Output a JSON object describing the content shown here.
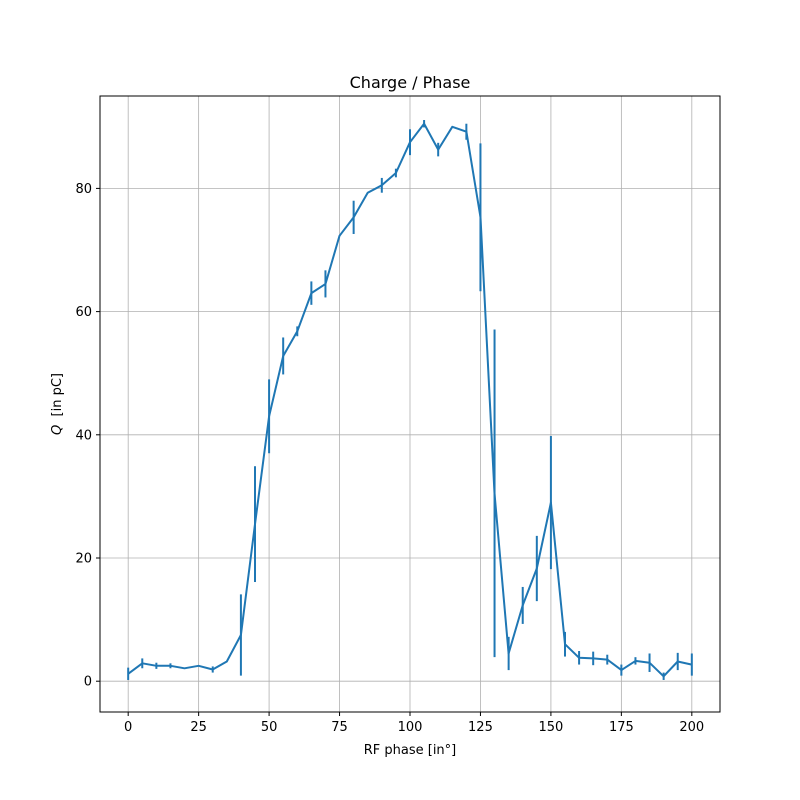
{
  "chart_data": {
    "type": "line",
    "title": "Charge / Phase",
    "xlabel": "RF phase [in°]",
    "ylabel_symbol": "Q",
    "ylabel_unit": "[in   pC]",
    "xlim": [
      -10,
      210
    ],
    "ylim": [
      -5,
      95
    ],
    "xticks": [
      0,
      25,
      50,
      75,
      100,
      125,
      150,
      175,
      200
    ],
    "yticks": [
      0,
      20,
      40,
      60,
      80
    ],
    "grid": true,
    "color": "#1f77b4",
    "series": [
      {
        "x": [
          0,
          5,
          10,
          15,
          20,
          25,
          30,
          35,
          40,
          45,
          50,
          55,
          60,
          65,
          70,
          75,
          80,
          85,
          90,
          95,
          100,
          105,
          110,
          115,
          120,
          125,
          130,
          135,
          140,
          145,
          150,
          155,
          160,
          165,
          170,
          175,
          180,
          185,
          190,
          195,
          200
        ],
        "y": [
          1.2,
          2.9,
          2.5,
          2.5,
          2.1,
          2.5,
          1.9,
          3.2,
          7.5,
          25.5,
          43.0,
          52.8,
          56.8,
          63.0,
          64.5,
          72.3,
          75.3,
          79.3,
          80.5,
          82.5,
          87.5,
          90.5,
          86.3,
          90.0,
          89.2,
          75.3,
          30.5,
          4.5,
          12.3,
          18.3,
          29.0,
          6.0,
          3.8,
          3.7,
          3.5,
          1.8,
          3.3,
          3.0,
          0.8,
          3.2,
          2.7
        ],
        "err": [
          1.0,
          0.8,
          0.5,
          0.4,
          0.0,
          0.0,
          0.5,
          0.0,
          6.6,
          9.4,
          6.0,
          3.0,
          0.8,
          1.9,
          2.2,
          0.0,
          2.7,
          0.0,
          1.2,
          0.7,
          2.1,
          0.6,
          1.1,
          0.0,
          1.3,
          12.0,
          26.6,
          2.7,
          3.0,
          5.3,
          10.8,
          2.0,
          1.1,
          1.1,
          0.8,
          0.9,
          0.6,
          1.5,
          0.6,
          1.4,
          1.8
        ]
      }
    ]
  }
}
